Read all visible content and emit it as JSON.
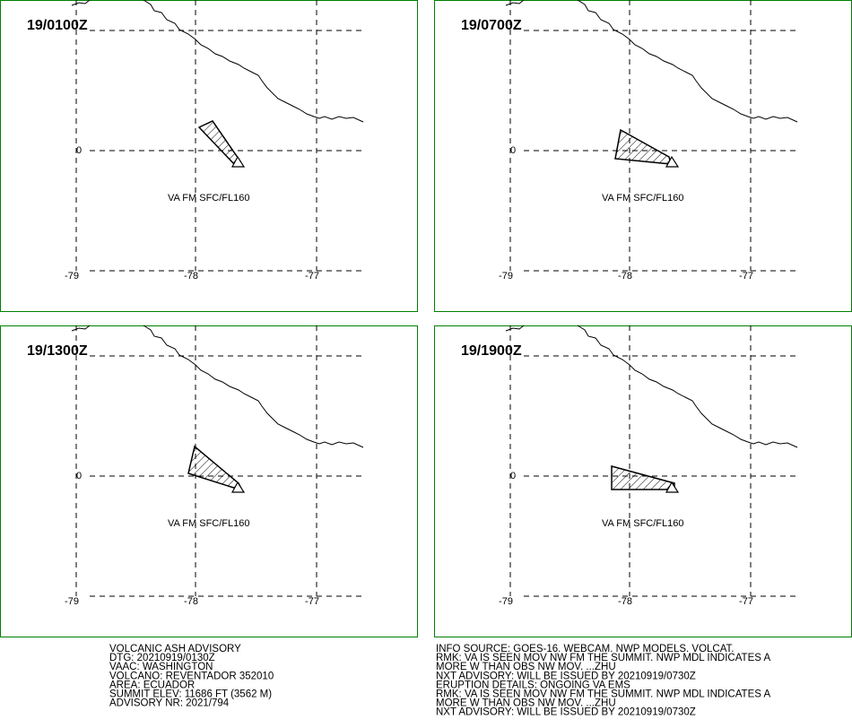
{
  "panels": [
    {
      "time": "19/0100Z",
      "lat_label": "0",
      "lon_labels": [
        "-79",
        "-78",
        "-77"
      ],
      "layer": "VA FM SFC/FL160"
    },
    {
      "time": "19/0700Z",
      "lat_label": "0",
      "lon_labels": [
        "-79",
        "-78",
        "-77"
      ],
      "layer": "VA FM SFC/FL160"
    },
    {
      "time": "19/1300Z",
      "lat_label": "0",
      "lon_labels": [
        "-79",
        "-78",
        "-77"
      ],
      "layer": "VA FM SFC/FL160"
    },
    {
      "time": "19/1900Z",
      "lat_label": "0",
      "lon_labels": [
        "-79",
        "-78",
        "-77"
      ],
      "layer": "VA FM SFC/FL160"
    }
  ],
  "advisory_header": [
    "VOLCANIC ASH ADVISORY",
    "DTG: 20210919/0130Z",
    "VAAC: WASHINGTON",
    "VOLCANO: REVENTADOR 352010",
    "AREA: ECUADOR",
    "SUMMIT ELEV: 11686 FT (3562 M)",
    "ADVISORY NR: 2021/794"
  ],
  "advisory_remarks": [
    "INFO SOURCE: GOES-16. WEBCAM. NWP MODELS. VOLCAT.",
    "RMK: VA IS SEEN MOV NW FM THE SUMMIT. NWP MDL INDICATES A",
    "MORE W THAN OBS NW MOV. ...ZHU",
    "NXT ADVISORY: WILL BE ISSUED BY 20210919/0730Z",
    "ERUPTION DETAILS: ONGOING VA EMS",
    "RMK: VA IS SEEN MOV NW FM THE SUMMIT. NWP MDL INDICATES A",
    "MORE W THAN OBS NW MOV. ...ZHU",
    "NXT ADVISORY: WILL BE ISSUED BY 20210919/0730Z"
  ]
}
